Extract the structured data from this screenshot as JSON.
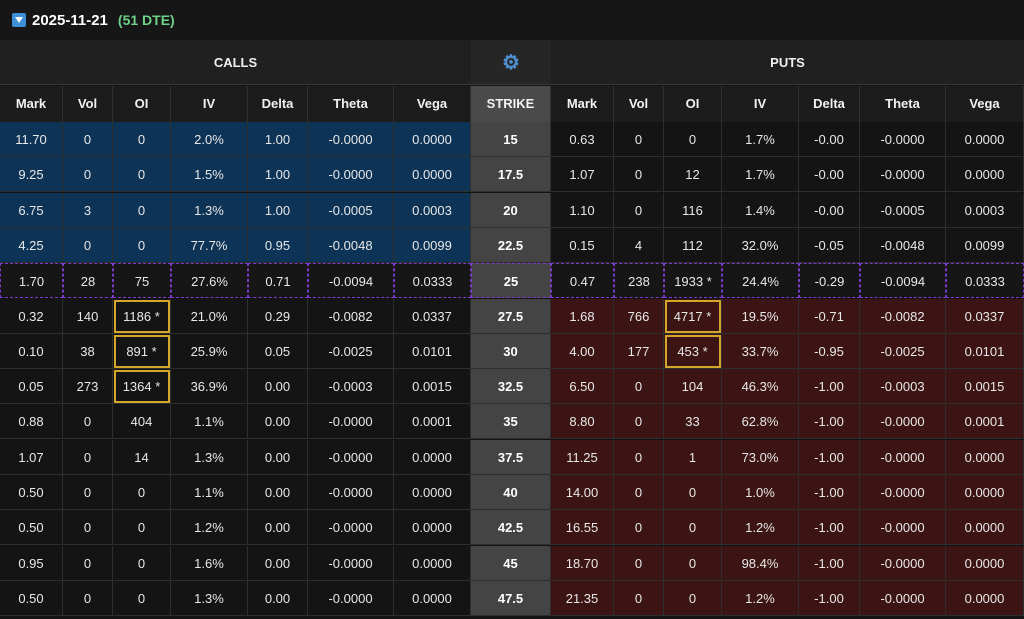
{
  "header": {
    "expiration": "2025-11-21",
    "dte_label": "(51 DTE)"
  },
  "sections": {
    "calls": "CALLS",
    "puts": "PUTS"
  },
  "columns": {
    "calls": [
      "Mark",
      "Vol",
      "OI",
      "IV",
      "Delta",
      "Theta",
      "Vega"
    ],
    "strike": "STRIKE",
    "puts": [
      "Mark",
      "Vol",
      "OI",
      "IV",
      "Delta",
      "Theta",
      "Vega"
    ]
  },
  "colors": {
    "itm_call": "#0d3357",
    "itm_put": "#3d1414",
    "atm_border": "#7a3cc8",
    "highlight": "#d4a62a",
    "dte": "#6fd08a"
  },
  "rows": [
    {
      "strike": "15",
      "calls": [
        "11.70",
        "0",
        "0",
        "2.0%",
        "1.00",
        "-0.0000",
        "0.0000"
      ],
      "puts": [
        "0.63",
        "0",
        "0",
        "1.7%",
        "-0.00",
        "-0.0000",
        "0.0000"
      ],
      "call_itm": true,
      "put_itm": false
    },
    {
      "strike": "17.5",
      "calls": [
        "9.25",
        "0",
        "0",
        "1.5%",
        "1.00",
        "-0.0000",
        "0.0000"
      ],
      "puts": [
        "1.07",
        "0",
        "12",
        "1.7%",
        "-0.00",
        "-0.0000",
        "0.0000"
      ],
      "call_itm": true,
      "put_itm": false
    },
    {
      "strike": "20",
      "calls": [
        "6.75",
        "3",
        "0",
        "1.3%",
        "1.00",
        "-0.0005",
        "0.0003"
      ],
      "puts": [
        "1.10",
        "0",
        "116",
        "1.4%",
        "-0.00",
        "-0.0005",
        "0.0003"
      ],
      "call_itm": true,
      "put_itm": false
    },
    {
      "strike": "22.5",
      "calls": [
        "4.25",
        "0",
        "0",
        "77.7%",
        "0.95",
        "-0.0048",
        "0.0099"
      ],
      "puts": [
        "0.15",
        "4",
        "112",
        "32.0%",
        "-0.05",
        "-0.0048",
        "0.0099"
      ],
      "call_itm": true,
      "put_itm": false
    },
    {
      "strike": "25",
      "calls": [
        "1.70",
        "28",
        "75",
        "27.6%",
        "0.71",
        "-0.0094",
        "0.0333"
      ],
      "puts": [
        "0.47",
        "238",
        "1933 *",
        "24.4%",
        "-0.29",
        "-0.0094",
        "0.0333"
      ],
      "call_itm": false,
      "put_itm": false,
      "atm": true
    },
    {
      "strike": "27.5",
      "calls": [
        "0.32",
        "140",
        "1186 *",
        "21.0%",
        "0.29",
        "-0.0082",
        "0.0337"
      ],
      "puts": [
        "1.68",
        "766",
        "4717 *",
        "19.5%",
        "-0.71",
        "-0.0082",
        "0.0337"
      ],
      "call_itm": false,
      "put_itm": true,
      "call_hl": 2,
      "put_hl": 2
    },
    {
      "strike": "30",
      "calls": [
        "0.10",
        "38",
        "891 *",
        "25.9%",
        "0.05",
        "-0.0025",
        "0.0101"
      ],
      "puts": [
        "4.00",
        "177",
        "453 *",
        "33.7%",
        "-0.95",
        "-0.0025",
        "0.0101"
      ],
      "call_itm": false,
      "put_itm": true,
      "call_hl": 2,
      "put_hl": 2
    },
    {
      "strike": "32.5",
      "calls": [
        "0.05",
        "273",
        "1364 *",
        "36.9%",
        "0.00",
        "-0.0003",
        "0.0015"
      ],
      "puts": [
        "6.50",
        "0",
        "104",
        "46.3%",
        "-1.00",
        "-0.0003",
        "0.0015"
      ],
      "call_itm": false,
      "put_itm": true,
      "call_hl": 2
    },
    {
      "strike": "35",
      "calls": [
        "0.88",
        "0",
        "404",
        "1.1%",
        "0.00",
        "-0.0000",
        "0.0001"
      ],
      "puts": [
        "8.80",
        "0",
        "33",
        "62.8%",
        "-1.00",
        "-0.0000",
        "0.0001"
      ],
      "call_itm": false,
      "put_itm": true
    },
    {
      "strike": "37.5",
      "calls": [
        "1.07",
        "0",
        "14",
        "1.3%",
        "0.00",
        "-0.0000",
        "0.0000"
      ],
      "puts": [
        "11.25",
        "0",
        "1",
        "73.0%",
        "-1.00",
        "-0.0000",
        "0.0000"
      ],
      "call_itm": false,
      "put_itm": true
    },
    {
      "strike": "40",
      "calls": [
        "0.50",
        "0",
        "0",
        "1.1%",
        "0.00",
        "-0.0000",
        "0.0000"
      ],
      "puts": [
        "14.00",
        "0",
        "0",
        "1.0%",
        "-1.00",
        "-0.0000",
        "0.0000"
      ],
      "call_itm": false,
      "put_itm": true
    },
    {
      "strike": "42.5",
      "calls": [
        "0.50",
        "0",
        "0",
        "1.2%",
        "0.00",
        "-0.0000",
        "0.0000"
      ],
      "puts": [
        "16.55",
        "0",
        "0",
        "1.2%",
        "-1.00",
        "-0.0000",
        "0.0000"
      ],
      "call_itm": false,
      "put_itm": true
    },
    {
      "strike": "45",
      "calls": [
        "0.95",
        "0",
        "0",
        "1.6%",
        "0.00",
        "-0.0000",
        "0.0000"
      ],
      "puts": [
        "18.70",
        "0",
        "0",
        "98.4%",
        "-1.00",
        "-0.0000",
        "0.0000"
      ],
      "call_itm": false,
      "put_itm": true
    },
    {
      "strike": "47.5",
      "calls": [
        "0.50",
        "0",
        "0",
        "1.3%",
        "0.00",
        "-0.0000",
        "0.0000"
      ],
      "puts": [
        "21.35",
        "0",
        "0",
        "1.2%",
        "-1.00",
        "-0.0000",
        "0.0000"
      ],
      "call_itm": false,
      "put_itm": true
    }
  ]
}
